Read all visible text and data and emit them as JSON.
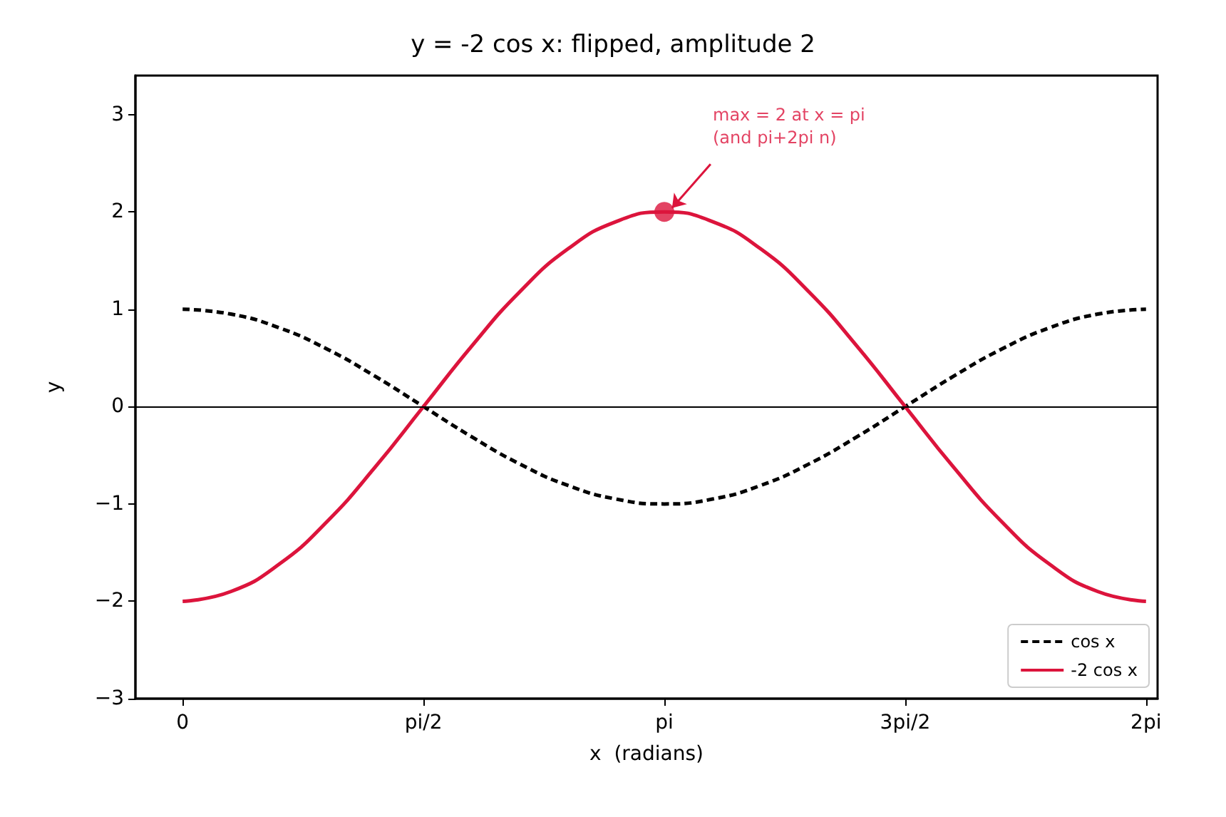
{
  "chart_data": {
    "type": "line",
    "title": "y = -2 cos x: flipped, amplitude 2",
    "xlabel": "x  (radians)",
    "ylabel": "y",
    "categories": [
      "0",
      null,
      null,
      null,
      null,
      "pi/2",
      null,
      null,
      null,
      null,
      "pi",
      null,
      null,
      null,
      null,
      "3pi/2",
      null,
      null,
      null,
      null,
      "2pi"
    ],
    "series": [
      {
        "name": "cos x",
        "color": "#000000",
        "line_style": "dashed",
        "values": [
          1,
          0.95,
          0.81,
          0.59,
          0.31,
          0,
          -0.31,
          -0.59,
          -0.81,
          -0.95,
          -1,
          -0.95,
          -0.81,
          -0.59,
          -0.31,
          0,
          0.31,
          0.59,
          0.81,
          0.95,
          1
        ]
      },
      {
        "name": "-2 cos x",
        "color": "#dc143c",
        "line_style": "solid",
        "values": [
          -2,
          -1.9,
          -1.62,
          -1.18,
          -0.62,
          0,
          0.62,
          1.18,
          1.62,
          1.9,
          2,
          1.9,
          1.62,
          1.18,
          0.62,
          0,
          -0.62,
          -1.18,
          -1.62,
          -1.9,
          -2
        ]
      },
      {
        "type": "scatter",
        "color": "#dc143c",
        "marker": "circle",
        "x": [
          "pi"
        ],
        "values": [
          2
        ]
      }
    ],
    "annotations": [
      {
        "text": "max = 2 at x = pi\n(and pi+2pi n)",
        "x": "pi",
        "y": 2
      }
    ],
    "ref_lines": [
      {
        "axis": "y",
        "value": 0,
        "color": "#000000"
      }
    ],
    "ylim": [
      -3,
      3.4
    ],
    "yticks": [
      -3,
      -2,
      -1,
      0,
      1,
      2,
      3
    ],
    "legend": "bottom right",
    "grid": false
  }
}
